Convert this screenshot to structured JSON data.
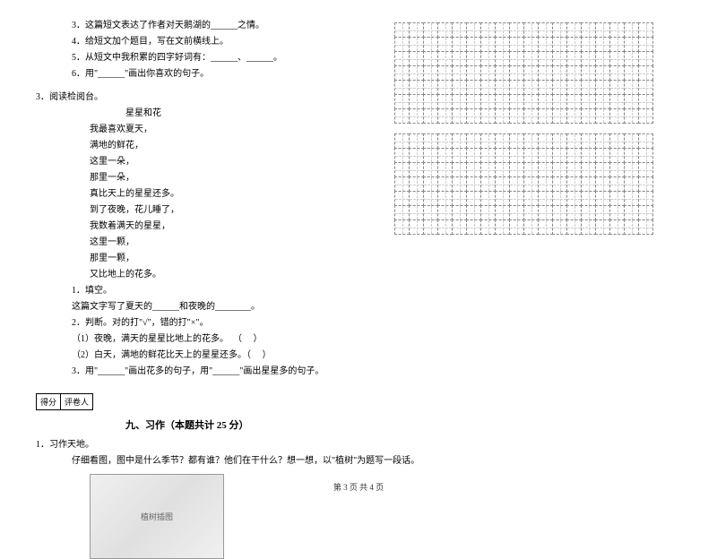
{
  "q3": {
    "items": [
      "3．这篇短文表达了作者对天鹅湖的______之情。",
      "4．给短文加个题目，写在文前横线上。",
      "5．从短文中我积累的四字好词有：______、______。",
      "6．用\"______\"画出你喜欢的句子。"
    ]
  },
  "reading": {
    "title": "3．阅读检阅台。",
    "poem_title": "星星和花",
    "lines": [
      "我最喜欢夏天，",
      "满地的鲜花，",
      "这里一朵，",
      "那里一朵，",
      "真比天上的星星还多。",
      "到了夜晚，花儿睡了，",
      "我数着满天的星星，",
      "这里一颗，",
      "那里一颗，",
      "又比地上的花多。"
    ],
    "q1": "1．填空。",
    "q1_text": "这篇文字写了夏天的______和夜晚的________。",
    "q2": "2．判断。对的打\"√\"，错的打\"×\"。",
    "q2_1": "（1）夜晚，满天的星星比地上的花多。  （     ）",
    "q2_2": "（2）白天，满地的鲜花比天上的星星还多。（     ）",
    "q3": "3．用\"______\"画出花多的句子，用\"______\"画出星星多的句子。"
  },
  "score": {
    "c1": "得分",
    "c2": "评卷人"
  },
  "section9": {
    "title": "九、习作（本题共计 25 分）",
    "q": "1．习作天地。",
    "prompt": "仔细看图，图中是什么季节？都有谁？他们在干什么？想一想，以\"植树\"为题写一段话。",
    "img_alt": "植树插图"
  },
  "grid": {
    "rows": 7,
    "cols": 18,
    "blocks": 2
  },
  "footer": "第 3 页 共 4 页"
}
